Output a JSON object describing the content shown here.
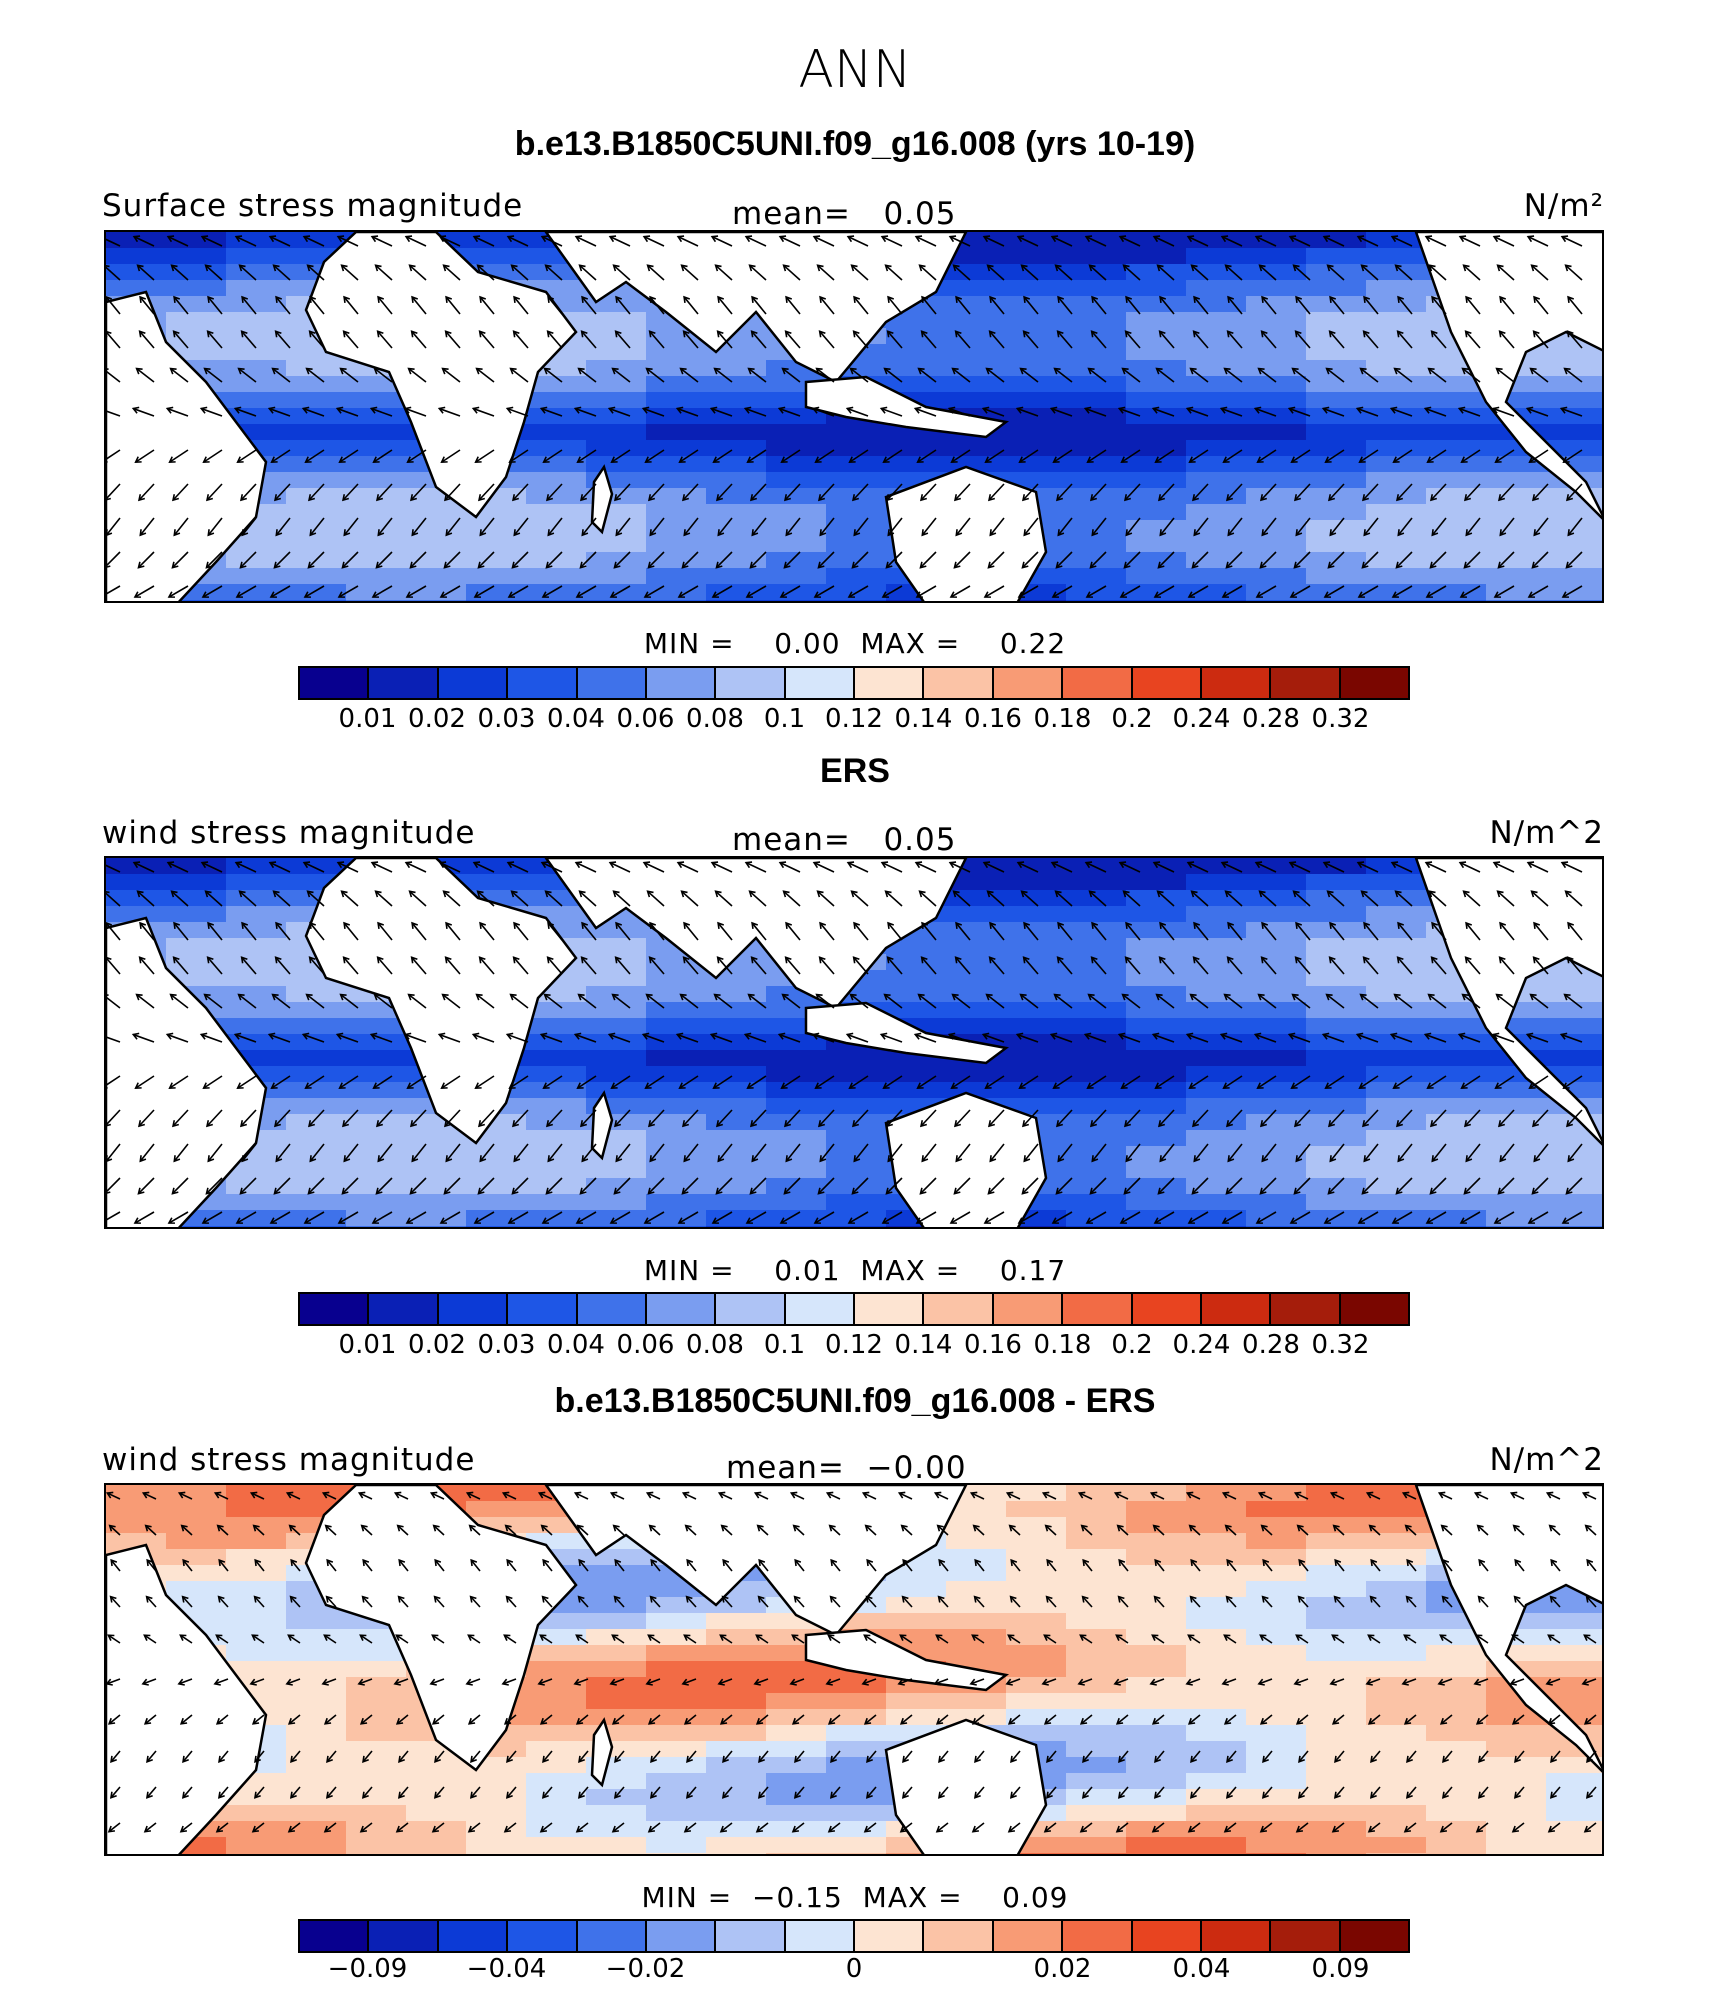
{
  "header": {
    "season": "ANN"
  },
  "panels": [
    {
      "title": "b.e13.B1850C5UNI.f09_g16.008 (yrs 10-19)",
      "left_label": "Surface stress magnitude",
      "mean_label": "mean=",
      "mean_value": "0.05",
      "units": "N/m²",
      "min_label": "MIN =",
      "min_value": "0.00",
      "max_label": "MAX =",
      "max_value": "0.22",
      "colorbar_ticks": [
        "0.01",
        "0.02",
        "0.03",
        "0.04",
        "0.06",
        "0.08",
        "0.1",
        "0.12",
        "0.14",
        "0.16",
        "0.18",
        "0.2",
        "0.24",
        "0.28",
        "0.32"
      ]
    },
    {
      "title": "ERS",
      "left_label": "wind stress magnitude",
      "mean_label": "mean=",
      "mean_value": "0.05",
      "units": "N/m^2",
      "min_label": "MIN =",
      "min_value": "0.01",
      "max_label": "MAX =",
      "max_value": "0.17",
      "colorbar_ticks": [
        "0.01",
        "0.02",
        "0.03",
        "0.04",
        "0.06",
        "0.08",
        "0.1",
        "0.12",
        "0.14",
        "0.16",
        "0.18",
        "0.2",
        "0.24",
        "0.28",
        "0.32"
      ]
    },
    {
      "title": "b.e13.B1850C5UNI.f09_g16.008 - ERS",
      "left_label": "wind stress magnitude",
      "mean_label": "mean=",
      "mean_value": "−0.00",
      "units": "N/m^2",
      "min_label": "MIN =",
      "min_value": "−0.15",
      "max_label": "MAX =",
      "max_value": "0.09",
      "colorbar_ticks": [
        "−0.09",
        "−0.04",
        "−0.02",
        "0",
        "0.02",
        "0.04",
        "0.09"
      ]
    }
  ],
  "colors": {
    "palette": [
      "#08008f",
      "#0a20b5",
      "#0c3ad6",
      "#1e56e6",
      "#3f72ea",
      "#7a9df0",
      "#aec3f5",
      "#d6e6fb",
      "#fde4d2",
      "#fbc3a6",
      "#f89b75",
      "#f26b45",
      "#e84420",
      "#cc2b10",
      "#a51d0b",
      "#7a0600"
    ],
    "land": "#ffffff",
    "coast": "#000000"
  }
}
